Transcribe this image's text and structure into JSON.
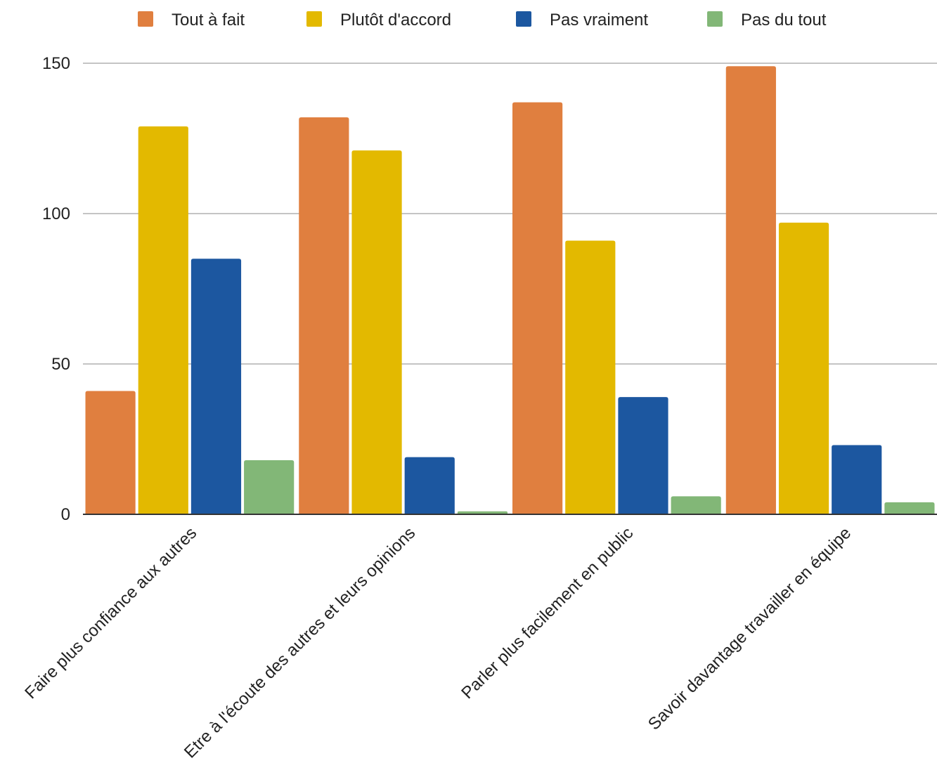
{
  "chart_data": {
    "type": "bar",
    "title": "",
    "xlabel": "",
    "ylabel": "",
    "categories": [
      "Faire plus confiance aux autres",
      "Etre à l'écoute des autres et leurs opinions",
      "Parler plus facilement en public",
      "Savoir davantage travailler en équipe"
    ],
    "series": [
      {
        "name": "Tout à fait",
        "color": "#e07f3f",
        "values": [
          41,
          132,
          137,
          149
        ]
      },
      {
        "name": "Plutôt d'accord",
        "color": "#e3b900",
        "values": [
          129,
          121,
          91,
          97
        ]
      },
      {
        "name": "Pas vraiment",
        "color": "#1c57a0",
        "values": [
          85,
          19,
          39,
          23
        ]
      },
      {
        "name": "Pas du tout",
        "color": "#82b777",
        "values": [
          18,
          1,
          6,
          4
        ]
      }
    ],
    "ylim": [
      0,
      150
    ],
    "yticks": [
      0,
      50,
      100,
      150
    ],
    "grid": true,
    "legend_position": "top"
  }
}
